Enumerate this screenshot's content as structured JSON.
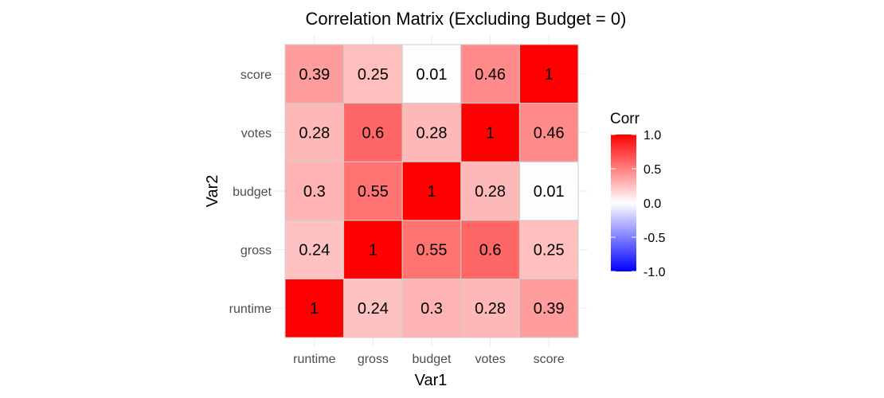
{
  "chart_data": {
    "type": "heatmap",
    "title": "Correlation Matrix (Excluding Budget = 0)",
    "xlabel": "Var1",
    "ylabel": "Var2",
    "x_categories": [
      "runtime",
      "gross",
      "budget",
      "votes",
      "score"
    ],
    "y_categories": [
      "runtime",
      "gross",
      "budget",
      "votes",
      "score"
    ],
    "values": [
      [
        1,
        0.24,
        0.3,
        0.28,
        0.39
      ],
      [
        0.24,
        1,
        0.55,
        0.6,
        0.25
      ],
      [
        0.3,
        0.55,
        1,
        0.28,
        0.01
      ],
      [
        0.28,
        0.6,
        0.28,
        1,
        0.46
      ],
      [
        0.39,
        0.25,
        0.01,
        0.46,
        1
      ]
    ],
    "legend": {
      "title": "Corr",
      "ticks": [
        1.0,
        0.5,
        0.0,
        -0.5,
        -1.0
      ],
      "tick_labels": [
        "1.0",
        "0.5",
        "0.0",
        "-0.5",
        "-1.0"
      ],
      "range": [
        -1,
        1
      ],
      "placement": "right"
    },
    "colors": {
      "low": "#0000ff",
      "mid": "#ffffff",
      "high": "#ff0000",
      "cell_border": "#cccccc"
    },
    "grid": true
  }
}
